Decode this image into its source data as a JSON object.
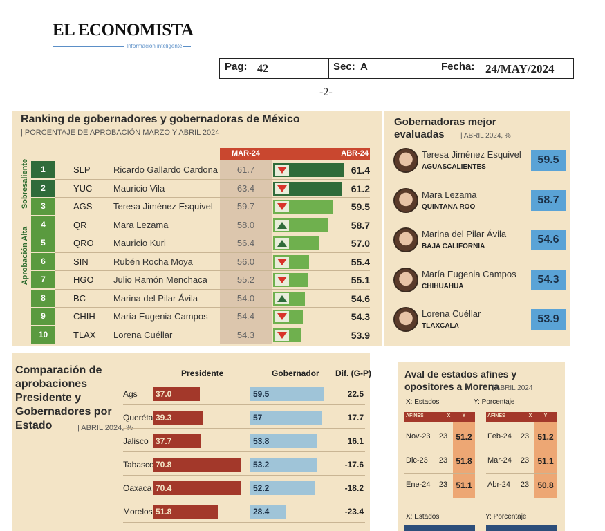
{
  "header": {
    "logo": "EL ECONOMISTA",
    "tagline": "Información inteligente",
    "pag_label": "Pag:",
    "pag": "42",
    "sec_label": "Sec:",
    "sec": "A",
    "fecha_label": "Fecha:",
    "fecha": "24/MAY/2024",
    "page_num": "-2-"
  },
  "ranking": {
    "title": "Ranking de gobernadores y gobernadoras de México",
    "subtitle": "| PORCENTAJE DE APROBACIÓN MARZO Y ABRIL 2024",
    "col_mar": "MAR-24",
    "col_abr": "ABR-24",
    "group_top": "Sobresaliente",
    "group_high": "Aprobación Alta",
    "rows": [
      {
        "rank": "1",
        "state": "SLP",
        "name": "Ricardo Gallardo Cardona",
        "mar": "61.7",
        "trend": "down",
        "abr": "61.4"
      },
      {
        "rank": "2",
        "state": "YUC",
        "name": "Mauricio Vila",
        "mar": "63.4",
        "trend": "down",
        "abr": "61.2"
      },
      {
        "rank": "3",
        "state": "AGS",
        "name": "Teresa Jiménez Esquivel",
        "mar": "59.7",
        "trend": "down",
        "abr": "59.5"
      },
      {
        "rank": "4",
        "state": "QR",
        "name": "Mara Lezama",
        "mar": "58.0",
        "trend": "up",
        "abr": "58.7"
      },
      {
        "rank": "5",
        "state": "QRO",
        "name": "Mauricio Kuri",
        "mar": "56.4",
        "trend": "up",
        "abr": "57.0"
      },
      {
        "rank": "6",
        "state": "SIN",
        "name": "Rubén Rocha Moya",
        "mar": "56.0",
        "trend": "down",
        "abr": "55.4"
      },
      {
        "rank": "7",
        "state": "HGO",
        "name": "Julio Ramón Menchaca",
        "mar": "55.2",
        "trend": "down",
        "abr": "55.1"
      },
      {
        "rank": "8",
        "state": "BC",
        "name": "Marina del Pilar Ávila",
        "mar": "54.0",
        "trend": "up",
        "abr": "54.6"
      },
      {
        "rank": "9",
        "state": "CHIH",
        "name": "María Eugenia Campos",
        "mar": "54.4",
        "trend": "down",
        "abr": "54.3"
      },
      {
        "rank": "10",
        "state": "TLAX",
        "name": "Lorena Cuéllar",
        "mar": "54.3",
        "trend": "down",
        "abr": "53.9"
      }
    ]
  },
  "gobernadoras": {
    "title": "Gobernadoras mejor evaluadas",
    "subtitle": "| ABRIL 2024, %",
    "items": [
      {
        "name": "Teresa Jiménez Esquivel",
        "state": "AGUASCALIENTES",
        "value": "59.5"
      },
      {
        "name": "Mara Lezama",
        "state": "QUINTANA ROO",
        "value": "58.7"
      },
      {
        "name": "Marina del Pilar Ávila",
        "state": "BAJA CALIFORNIA",
        "value": "54.6"
      },
      {
        "name": "María Eugenia Campos",
        "state": "CHIHUAHUA",
        "value": "54.3"
      },
      {
        "name": "Lorena Cuéllar",
        "state": "TLAXCALA",
        "value": "53.9"
      }
    ]
  },
  "comparacion": {
    "title": "Comparación de aprobaciones Presidente y Gobernadores por Estado",
    "subtitle": "| ABRIL 2024, %",
    "col_pres": "Presidente",
    "col_gob": "Gobernador",
    "col_dif": "Dif. (G-P)",
    "rows": [
      {
        "state": "Ags",
        "pres": "37.0",
        "gob": "59.5",
        "dif": "22.5"
      },
      {
        "state": "Querétaro",
        "pres": "39.3",
        "gob": "57",
        "dif": "17.7"
      },
      {
        "state": "Jalisco",
        "pres": "37.7",
        "gob": "53.8",
        "dif": "16.1"
      },
      {
        "state": "Tabasco",
        "pres": "70.8",
        "gob": "53.2",
        "dif": "-17.6"
      },
      {
        "state": "Oaxaca",
        "pres": "70.4",
        "gob": "52.2",
        "dif": "-18.2"
      },
      {
        "state": "Morelos",
        "pres": "51.8",
        "gob": "28.4",
        "dif": "-23.4"
      }
    ]
  },
  "aval": {
    "title": "Aval de estados afines y opositores a Morena",
    "subtitle": "| ABRIL 2024",
    "x_label": "X: Estados",
    "y_label": "Y: Porcentaje",
    "tables": [
      {
        "headers": [
          "AFINES",
          "X",
          "Y"
        ],
        "rows": [
          [
            "Nov-23",
            "23",
            "51.2"
          ],
          [
            "Dic-23",
            "23",
            "51.8"
          ],
          [
            "Ene-24",
            "23",
            "51.1"
          ]
        ]
      },
      {
        "headers": [
          "AFINES",
          "X",
          "Y"
        ],
        "rows": [
          [
            "Feb-24",
            "23",
            "51.2"
          ],
          [
            "Mar-24",
            "23",
            "51.1"
          ],
          [
            "Abr-24",
            "23",
            "50.8"
          ]
        ]
      }
    ],
    "x_label_2": "X: Estados",
    "y_label_2": "Y: Porcentaje"
  }
}
